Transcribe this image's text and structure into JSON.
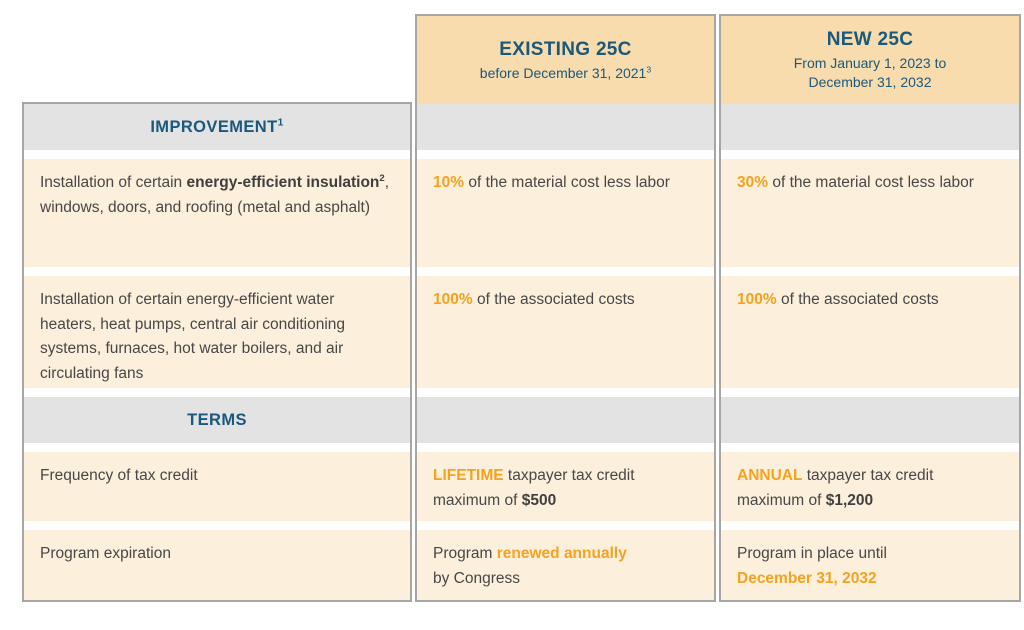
{
  "palette": {
    "header_bg": "#f9dcad",
    "row_bg": "#fcefdc",
    "section_band_bg": "#e3e3e3",
    "heading_blue": "#1a587c",
    "accent_orange": "#f6a21e",
    "body_text": "#474747",
    "border_gray": "#a6a6a6"
  },
  "table": {
    "columns": {
      "existing": {
        "title": "EXISTING 25C",
        "subtitle": "before December 31, 2021",
        "subtitle_sup": "3"
      },
      "new": {
        "title": "NEW 25C",
        "subtitle_line1": "From January 1, 2023 to",
        "subtitle_line2": "December 31, 2032"
      }
    },
    "sections": {
      "improvement": {
        "label": "IMPROVEMENT",
        "sup": "1"
      },
      "terms": {
        "label": "TERMS"
      }
    },
    "rows": {
      "insulation": {
        "label_pre": "Installation of certain ",
        "label_bold": "energy-efficient insulation",
        "label_bold_sup": "2",
        "label_post": ", windows, doors, and roofing (metal and asphalt)",
        "existing_pct": "10%",
        "existing_rest": " of the material cost less labor",
        "new_pct": "30%",
        "new_rest": " of the material cost less labor"
      },
      "water_heaters": {
        "label": "Installation of certain energy-efficient water heaters, heat pumps, central air conditioning systems, furnaces, hot water boilers, and air circulating fans",
        "existing_pct": "100%",
        "existing_rest": " of the associated costs",
        "new_pct": "100%",
        "new_rest": " of the associated costs"
      },
      "frequency": {
        "label": "Frequency of tax credit",
        "existing_hl": "LIFETIME",
        "existing_mid": " taxpayer tax credit",
        "existing_line2_pre": "maximum of ",
        "existing_strong": "$500",
        "new_hl": "ANNUAL",
        "new_mid": " taxpayer tax credit",
        "new_line2_pre": "maximum of ",
        "new_strong": "$1,200"
      },
      "expiration": {
        "label": "Program expiration",
        "existing_pre": "Program ",
        "existing_hl": "renewed annually",
        "existing_line2": "by Congress",
        "new_line1": "Program in place until",
        "new_hl": "December 31, 2032"
      }
    }
  }
}
